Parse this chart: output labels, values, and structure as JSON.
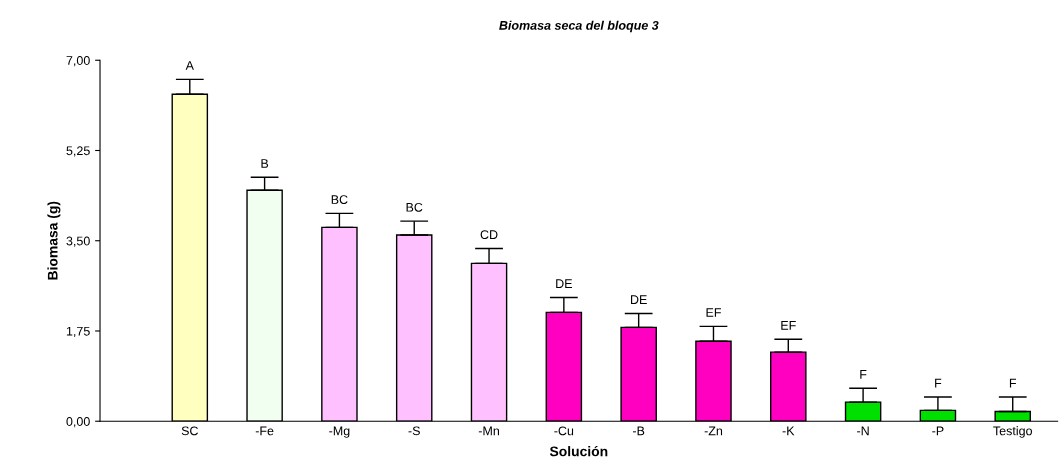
{
  "chart_data": {
    "type": "bar",
    "title": "Biomasa seca del bloque 3",
    "xlabel": "Solución",
    "ylabel": "Biomasa (g)",
    "categories": [
      "SC",
      "-Fe",
      "-Mg",
      "-S",
      "-Mn",
      "-Cu",
      "-B",
      "-Zn",
      "-K",
      "-N",
      "-P",
      "Testigo"
    ],
    "values": [
      6.34,
      4.48,
      3.76,
      3.61,
      3.06,
      2.11,
      1.82,
      1.55,
      1.34,
      0.37,
      0.21,
      0.19
    ],
    "errors": [
      [
        6.34,
        6.63
      ],
      [
        4.48,
        4.73
      ],
      [
        3.76,
        4.03
      ],
      [
        3.61,
        3.88
      ],
      [
        3.06,
        3.35
      ],
      [
        2.11,
        2.4
      ],
      [
        1.82,
        2.09
      ],
      [
        1.55,
        1.84
      ],
      [
        1.34,
        1.59
      ],
      [
        0.37,
        0.64
      ],
      [
        0.21,
        0.47
      ],
      [
        0.19,
        0.47
      ]
    ],
    "colors": [
      "#ffffc0",
      "#f0fff0",
      "#ffc0ff",
      "#ffc0ff",
      "#ffc0ff",
      "#ff00c0",
      "#ff00c0",
      "#ff00c0",
      "#ff00c0",
      "#00e000",
      "#00e000",
      "#00e000"
    ],
    "ylim": [
      0,
      7
    ],
    "yticks": [
      {
        "value": 0,
        "label": "0,00"
      },
      {
        "value": 1.75,
        "label": "1,75"
      },
      {
        "value": 3.5,
        "label": "3,50"
      },
      {
        "value": 5.25,
        "label": "5,25"
      },
      {
        "value": 7,
        "label": "7,00"
      }
    ],
    "grid": false,
    "legend": false,
    "annotations": [
      "A",
      "B",
      "BC",
      "BC",
      "CD",
      "DE",
      "DE",
      "EF",
      "EF",
      "F",
      "F",
      "F"
    ]
  }
}
